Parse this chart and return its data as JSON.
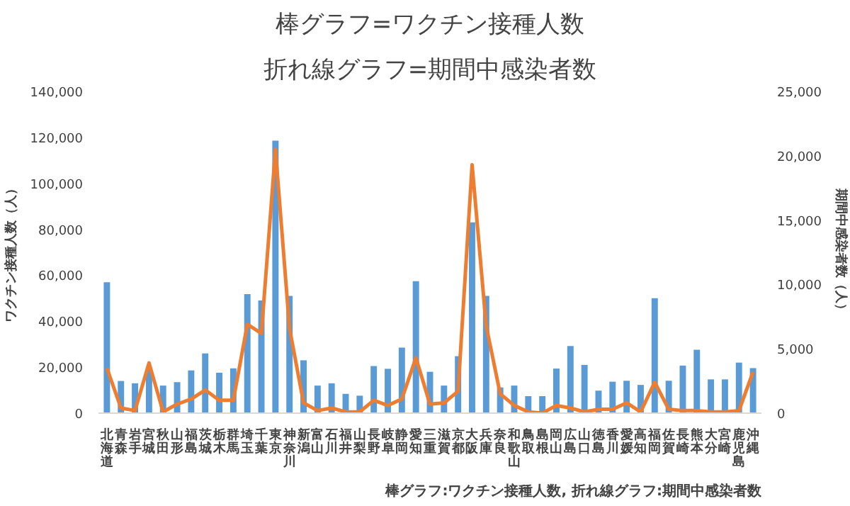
{
  "chart_data": {
    "type": "bar",
    "title": "棒グラフ=ワクチン接種人数",
    "subtitle": "折れ線グラフ=期間中感染者数",
    "ylabel": "ワクチン接種人数（人）",
    "y2label": "期間中感染者数（人）",
    "annotations": [
      "棒グラフ:ワクチン接種人数, 折れ線グラフ:期間中感染者数"
    ],
    "categories": [
      "北海道",
      "青森",
      "岩手",
      "宮城",
      "秋田",
      "山形",
      "福島",
      "茨城",
      "栃木",
      "群馬",
      "埼玉",
      "千葉",
      "東京",
      "神奈川",
      "新潟",
      "富山",
      "石川",
      "福井",
      "山梨",
      "長野",
      "岐阜",
      "静岡",
      "愛知",
      "三重",
      "滋賀",
      "京都",
      "大阪",
      "兵庫",
      "奈良",
      "和歌山",
      "鳥取",
      "島根",
      "岡山",
      "広島",
      "山口",
      "徳島",
      "香川",
      "愛媛",
      "高知",
      "福岡",
      "佐賀",
      "長崎",
      "熊本",
      "大分",
      "宮崎",
      "鹿児島",
      "沖縄"
    ],
    "series": [
      {
        "color": "#5b9bd5",
        "values": [
          57000,
          14000,
          13000,
          20000,
          12000,
          13500,
          18600,
          26000,
          17600,
          19500,
          51800,
          49000,
          118600,
          51000,
          23000,
          12000,
          13000,
          8400,
          7600,
          20500,
          19300,
          28500,
          57400,
          18000,
          12000,
          24800,
          83000,
          51000,
          11200,
          12000,
          7400,
          7400,
          19400,
          29200,
          21000,
          9800,
          13700,
          14100,
          12300,
          50000,
          14100,
          20700,
          27600,
          14700,
          14700,
          22000,
          19600
        ]
      },
      {
        "type": "line",
        "axis": "y2",
        "color": "#ed7d31",
        "values": [
          3500,
          400,
          200,
          3900,
          100,
          700,
          1100,
          1800,
          1000,
          1000,
          6900,
          6200,
          20500,
          6600,
          800,
          200,
          400,
          100,
          100,
          1000,
          600,
          1100,
          4300,
          700,
          800,
          1700,
          19300,
          6800,
          1500,
          600,
          100,
          0,
          600,
          400,
          100,
          300,
          300,
          800,
          100,
          2400,
          300,
          200,
          200,
          100,
          100,
          200,
          3200
        ]
      }
    ],
    "ylim": [
      0,
      140000
    ],
    "yticks": [
      {
        "value": 0,
        "label": "0"
      },
      {
        "value": 20000,
        "label": "20,000"
      },
      {
        "value": 40000,
        "label": "40,000"
      },
      {
        "value": 60000,
        "label": "60,000"
      },
      {
        "value": 80000,
        "label": "80,000"
      },
      {
        "value": 100000,
        "label": "100,000"
      },
      {
        "value": 120000,
        "label": "120,000"
      },
      {
        "value": 140000,
        "label": "140,000"
      }
    ],
    "y2lim": [
      0,
      25000
    ],
    "y2ticks": [
      {
        "value": 0,
        "label": "0"
      },
      {
        "value": 5000,
        "label": "5,000"
      },
      {
        "value": 10000,
        "label": "10,000"
      },
      {
        "value": 15000,
        "label": "15,000"
      },
      {
        "value": 20000,
        "label": "20,000"
      },
      {
        "value": 25000,
        "label": "25,000"
      }
    ],
    "grid": false,
    "line_style": "solid",
    "marker": "none"
  }
}
